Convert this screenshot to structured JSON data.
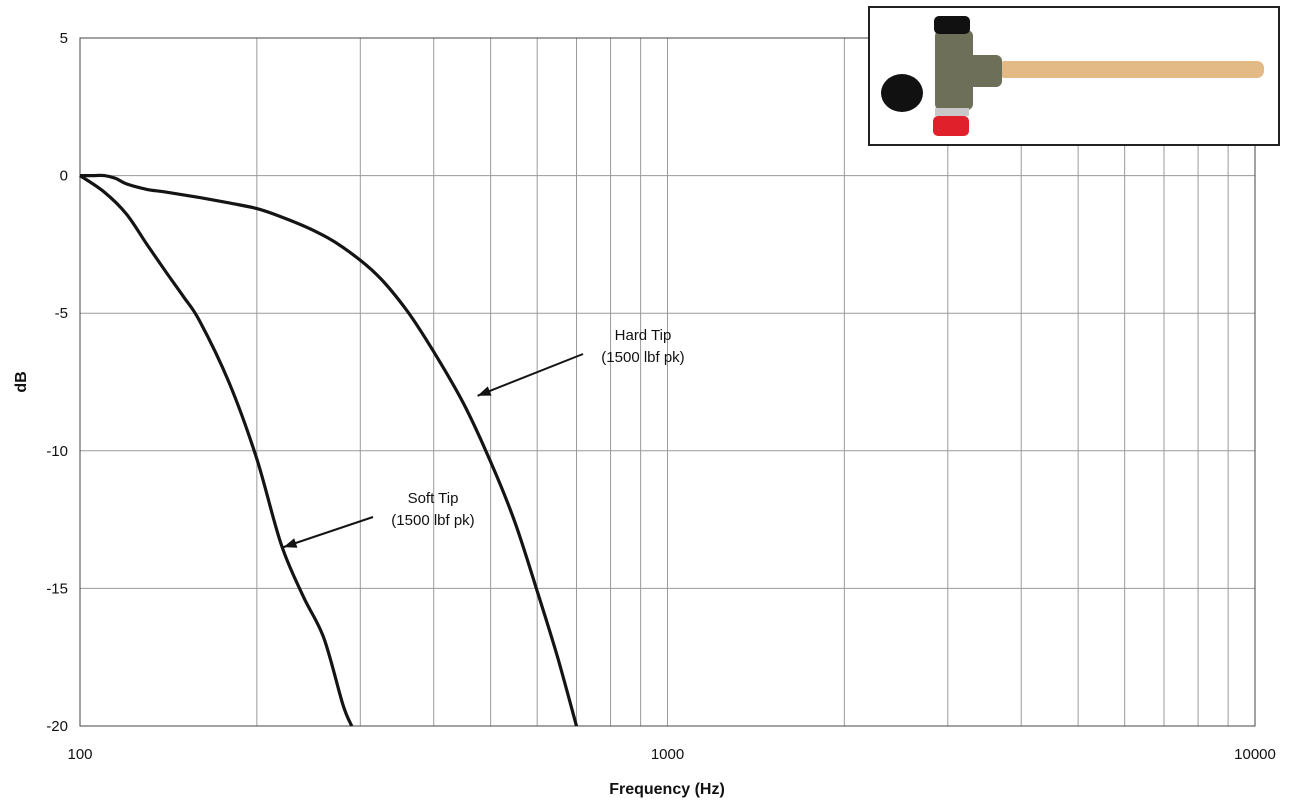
{
  "chart_data": {
    "type": "line",
    "xscale": "log",
    "xlabel": "Frequency (Hz)",
    "ylabel": "dB",
    "xlim": [
      100,
      10000
    ],
    "ylim": [
      -20,
      5
    ],
    "xticks": [
      100,
      1000,
      10000
    ],
    "xtick_labels": [
      "100",
      "1000",
      "10000"
    ],
    "yticks": [
      5,
      0,
      -5,
      -10,
      -15,
      -20
    ],
    "ytick_labels": [
      "5",
      "0",
      "-5",
      "-10",
      "-15",
      "-20"
    ],
    "grid": true,
    "series": [
      {
        "name": "Hard Tip",
        "x": [
          100,
          105,
          110,
          115,
          120,
          130,
          140,
          160,
          180,
          200,
          220,
          250,
          280,
          320,
          360,
          400,
          450,
          500,
          550,
          600,
          650,
          700
        ],
        "y": [
          0,
          0,
          0,
          -0.1,
          -0.3,
          -0.5,
          -0.6,
          -0.8,
          -1.0,
          -1.2,
          -1.5,
          -2.0,
          -2.6,
          -3.6,
          -4.9,
          -6.4,
          -8.3,
          -10.4,
          -12.6,
          -15.1,
          -17.5,
          -20
        ]
      },
      {
        "name": "Soft Tip",
        "x": [
          100,
          110,
          120,
          130,
          140,
          150,
          160,
          180,
          200,
          220,
          240,
          260,
          280,
          290
        ],
        "y": [
          0,
          -0.6,
          -1.4,
          -2.5,
          -3.5,
          -4.4,
          -5.3,
          -7.6,
          -10.3,
          -13.4,
          -15.3,
          -16.8,
          -19.2,
          -20
        ]
      }
    ],
    "annotations": [
      {
        "lines": [
          "Hard Tip",
          "(1500 lbf pk)"
        ],
        "points_to": {
          "x": 475,
          "y": -8.0
        }
      },
      {
        "lines": [
          "Soft Tip",
          "(1500 lbf pk)"
        ],
        "points_to": {
          "x": 222,
          "y": -13.5
        }
      }
    ]
  }
}
